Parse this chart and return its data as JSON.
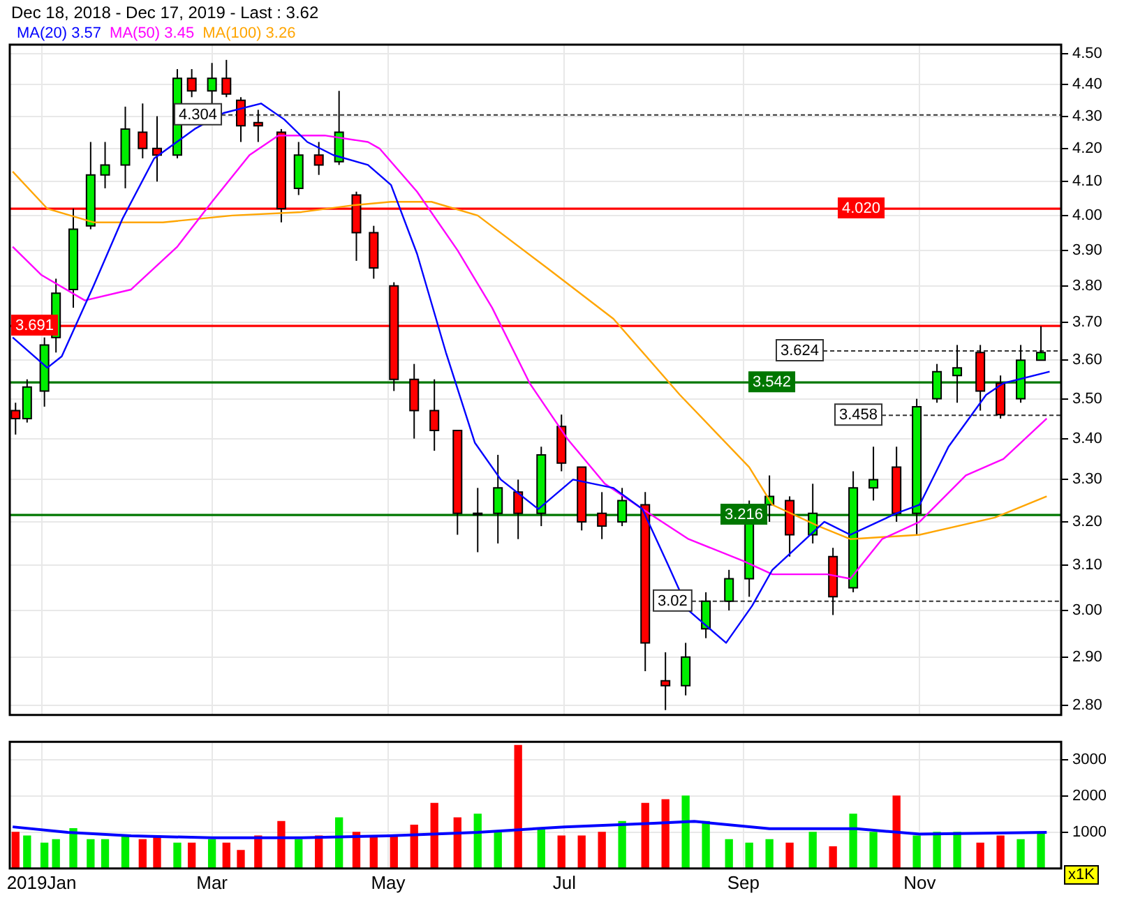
{
  "chart_data": [
    {
      "type": "candlestick",
      "title": "Dec 18, 2018 - Dec 17, 2019 - Last : 3.62",
      "log": "y",
      "grid": true,
      "legend": "top left",
      "tick_labels": "y",
      "xlim": [
        "2018-12-21",
        "2019-12-20"
      ],
      "xticks": [
        {
          "value": "2019-01-01",
          "label": null
        },
        {
          "value": "2019-03-01",
          "label": null
        },
        {
          "value": "2019-05-01",
          "label": null
        },
        {
          "value": "2019-07-01",
          "label": null
        },
        {
          "value": "2019-09-01",
          "label": null
        },
        {
          "value": "2019-11-01",
          "label": null
        }
      ],
      "ylim": [
        2.78,
        4.53
      ],
      "yticks": [
        {
          "value": 2.8,
          "label": "2.80"
        },
        {
          "value": 2.9,
          "label": "2.90"
        },
        {
          "value": 3,
          "label": "3.00"
        },
        {
          "value": 3.1,
          "label": "3.10"
        },
        {
          "value": 3.2,
          "label": "3.20"
        },
        {
          "value": 3.3,
          "label": "3.30"
        },
        {
          "value": 3.4,
          "label": "3.40"
        },
        {
          "value": 3.5,
          "label": "3.50"
        },
        {
          "value": 3.6,
          "label": "3.60"
        },
        {
          "value": 3.7,
          "label": "3.70"
        },
        {
          "value": 3.8,
          "label": "3.80"
        },
        {
          "value": 3.9,
          "label": "3.90"
        },
        {
          "value": 4,
          "label": "4.00"
        },
        {
          "value": 4.1,
          "label": "4.10"
        },
        {
          "value": 4.2,
          "label": "4.20"
        },
        {
          "value": 4.3,
          "label": "4.30"
        },
        {
          "value": 4.4,
          "label": "4.40"
        },
        {
          "value": 4.5,
          "label": "4.50"
        }
      ],
      "x": [
        "2018-12-23",
        "2018-12-27",
        "2019-01-02",
        "2019-01-06",
        "2019-01-12",
        "2019-01-18",
        "2019-01-23",
        "2019-01-30",
        "2019-02-05",
        "2019-02-10",
        "2019-02-17",
        "2019-02-22",
        "2019-03-01",
        "2019-03-06",
        "2019-03-11",
        "2019-03-17",
        "2019-03-25",
        "2019-03-31",
        "2019-04-07",
        "2019-04-14",
        "2019-04-20",
        "2019-04-26",
        "2019-05-03",
        "2019-05-10",
        "2019-05-17",
        "2019-05-25",
        "2019-06-01",
        "2019-06-08",
        "2019-06-15",
        "2019-06-23",
        "2019-06-30",
        "2019-07-07",
        "2019-07-14",
        "2019-07-21",
        "2019-07-29",
        "2019-08-05",
        "2019-08-12",
        "2019-08-19",
        "2019-08-27",
        "2019-09-03",
        "2019-09-10",
        "2019-09-17",
        "2019-09-25",
        "2019-10-02",
        "2019-10-09",
        "2019-10-16",
        "2019-10-24",
        "2019-10-31",
        "2019-11-07",
        "2019-11-14",
        "2019-11-22",
        "2019-11-29",
        "2019-12-06",
        "2019-12-13"
      ],
      "ohlc": [
        [
          3.47,
          3.49,
          3.41,
          3.45
        ],
        [
          3.45,
          3.55,
          3.44,
          3.53
        ],
        [
          3.52,
          3.66,
          3.48,
          3.64
        ],
        [
          3.66,
          3.82,
          3.62,
          3.78
        ],
        [
          3.79,
          4.02,
          3.74,
          3.96
        ],
        [
          3.97,
          4.22,
          3.96,
          4.12
        ],
        [
          4.12,
          4.22,
          4.08,
          4.15
        ],
        [
          4.15,
          4.33,
          4.08,
          4.26
        ],
        [
          4.25,
          4.34,
          4.17,
          4.2
        ],
        [
          4.2,
          4.3,
          4.1,
          4.18
        ],
        [
          4.18,
          4.45,
          4.17,
          4.42
        ],
        [
          4.42,
          4.45,
          4.36,
          4.38
        ],
        [
          4.38,
          4.47,
          4.3,
          4.42
        ],
        [
          4.42,
          4.48,
          4.36,
          4.37
        ],
        [
          4.35,
          4.36,
          4.22,
          4.27
        ],
        [
          4.28,
          4.32,
          4.22,
          4.27
        ],
        [
          4.25,
          4.26,
          3.98,
          4.02
        ],
        [
          4.08,
          4.22,
          4.06,
          4.18
        ],
        [
          4.18,
          4.22,
          4.12,
          4.15
        ],
        [
          4.16,
          4.38,
          4.15,
          4.25
        ],
        [
          4.06,
          4.07,
          3.87,
          3.95
        ],
        [
          3.95,
          3.97,
          3.82,
          3.85
        ],
        [
          3.8,
          3.81,
          3.52,
          3.55
        ],
        [
          3.55,
          3.59,
          3.4,
          3.47
        ],
        [
          3.47,
          3.55,
          3.37,
          3.42
        ],
        [
          3.42,
          3.42,
          3.17,
          3.22
        ],
        [
          3.22,
          3.28,
          3.13,
          3.22
        ],
        [
          3.22,
          3.36,
          3.15,
          3.28
        ],
        [
          3.27,
          3.3,
          3.16,
          3.22
        ],
        [
          3.22,
          3.38,
          3.19,
          3.36
        ],
        [
          3.43,
          3.46,
          3.32,
          3.34
        ],
        [
          3.33,
          3.33,
          3.18,
          3.2
        ],
        [
          3.22,
          3.27,
          3.16,
          3.19
        ],
        [
          3.2,
          3.28,
          3.19,
          3.25
        ],
        [
          3.24,
          3.27,
          2.87,
          2.93
        ],
        [
          2.85,
          2.91,
          2.79,
          2.84
        ],
        [
          2.84,
          2.93,
          2.82,
          2.9
        ],
        [
          2.96,
          3.04,
          2.94,
          3.02
        ],
        [
          3.02,
          3.09,
          3,
          3.07
        ],
        [
          3.07,
          3.25,
          3.03,
          3.22
        ],
        [
          3.24,
          3.31,
          3.2,
          3.26
        ],
        [
          3.25,
          3.26,
          3.12,
          3.17
        ],
        [
          3.17,
          3.29,
          3.15,
          3.22
        ],
        [
          3.12,
          3.14,
          2.99,
          3.03
        ],
        [
          3.05,
          3.32,
          3.04,
          3.28
        ],
        [
          3.28,
          3.38,
          3.25,
          3.3
        ],
        [
          3.33,
          3.38,
          3.2,
          3.22
        ],
        [
          3.22,
          3.5,
          3.17,
          3.48
        ],
        [
          3.5,
          3.59,
          3.49,
          3.57
        ],
        [
          3.56,
          3.64,
          3.49,
          3.58
        ],
        [
          3.62,
          3.64,
          3.47,
          3.52
        ],
        [
          3.54,
          3.56,
          3.45,
          3.46
        ],
        [
          3.5,
          3.64,
          3.49,
          3.6
        ],
        [
          3.6,
          3.69,
          3.6,
          3.62
        ]
      ],
      "series": [
        {
          "type": "line",
          "name": "MA(20) 3.57",
          "color": "#0000ff",
          "x": [
            "2018-12-22",
            "2019-01-03",
            "2019-01-08",
            "2019-01-19",
            "2019-01-29",
            "2019-02-09",
            "2019-02-23",
            "2019-03-05",
            "2019-03-18",
            "2019-03-26",
            "2019-04-03",
            "2019-04-12",
            "2019-04-24",
            "2019-05-02",
            "2019-05-11",
            "2019-05-21",
            "2019-05-31",
            "2019-06-09",
            "2019-06-22",
            "2019-07-04",
            "2019-07-18",
            "2019-07-28",
            "2019-08-06",
            "2019-08-13",
            "2019-08-26",
            "2019-09-04",
            "2019-09-11",
            "2019-09-29",
            "2019-10-08",
            "2019-10-24",
            "2019-11-01",
            "2019-11-11",
            "2019-11-24",
            "2019-11-30",
            "2019-12-16"
          ],
          "values": [
            3.66,
            3.58,
            3.61,
            3.8,
            3.99,
            4.17,
            4.26,
            4.31,
            4.34,
            4.29,
            4.22,
            4.18,
            4.15,
            4.09,
            3.89,
            3.62,
            3.39,
            3.3,
            3.23,
            3.3,
            3.28,
            3.23,
            3.1,
            3,
            2.93,
            3.01,
            3.09,
            3.2,
            3.17,
            3.22,
            3.24,
            3.38,
            3.51,
            3.54,
            3.57
          ]
        },
        {
          "type": "line",
          "name": "MA(50) 3.45",
          "color": "#ff00ff",
          "x": [
            "2018-12-22",
            "2019-01-01",
            "2019-01-16",
            "2019-02-01",
            "2019-02-17",
            "2019-03-01",
            "2019-03-14",
            "2019-03-24",
            "2019-04-09",
            "2019-04-24",
            "2019-04-28",
            "2019-05-11",
            "2019-05-25",
            "2019-06-06",
            "2019-06-19",
            "2019-07-02",
            "2019-07-15",
            "2019-07-28",
            "2019-08-13",
            "2019-09-01",
            "2019-09-11",
            "2019-09-30",
            "2019-10-08",
            "2019-10-19",
            "2019-11-01",
            "2019-11-17",
            "2019-11-30",
            "2019-12-15"
          ],
          "values": [
            3.91,
            3.83,
            3.76,
            3.79,
            3.91,
            4.04,
            4.18,
            4.24,
            4.24,
            4.22,
            4.2,
            4.07,
            3.9,
            3.74,
            3.54,
            3.4,
            3.29,
            3.23,
            3.16,
            3.11,
            3.08,
            3.08,
            3.07,
            3.16,
            3.2,
            3.31,
            3.35,
            3.45
          ]
        },
        {
          "type": "line",
          "name": "MA(100) 3.26",
          "color": "#ffa500",
          "x": [
            "2018-12-22",
            "2019-01-03",
            "2019-01-19",
            "2019-02-12",
            "2019-03-08",
            "2019-04-01",
            "2019-04-19",
            "2019-05-02",
            "2019-05-16",
            "2019-06-01",
            "2019-06-25",
            "2019-07-18",
            "2019-08-10",
            "2019-09-03",
            "2019-09-11",
            "2019-09-27",
            "2019-10-08",
            "2019-11-01",
            "2019-11-27",
            "2019-12-15"
          ],
          "values": [
            4.13,
            4.02,
            3.98,
            3.98,
            4,
            4.01,
            4.03,
            4.04,
            4.04,
            4,
            3.85,
            3.71,
            3.51,
            3.33,
            3.24,
            3.19,
            3.16,
            3.17,
            3.21,
            3.26
          ]
        }
      ],
      "ref_lines": [
        {
          "axis": "y",
          "value": 4.02,
          "label": "4.020",
          "color": "#ff0000",
          "line_style": "solid"
        },
        {
          "axis": "y",
          "value": 3.691,
          "label": "3.691",
          "color": "#ff0000",
          "line_style": "solid"
        },
        {
          "axis": "y",
          "value": 3.542,
          "label": "3.542",
          "color": "#007700",
          "line_style": "solid"
        },
        {
          "axis": "y",
          "value": 3.216,
          "label": "3.216",
          "color": "#007700",
          "line_style": "solid"
        },
        {
          "axis": "y",
          "value": 4.304,
          "label": "4.304",
          "color": "#333333",
          "line_style": "dashed"
        },
        {
          "axis": "y",
          "value": 3.624,
          "label": "3.624",
          "color": "#333333",
          "line_style": "dashed"
        },
        {
          "axis": "y",
          "value": 3.458,
          "label": "3.458",
          "color": "#333333",
          "line_style": "dashed"
        },
        {
          "axis": "y",
          "value": 3.02,
          "label": "3.02",
          "color": "#333333",
          "line_style": "dashed"
        }
      ]
    },
    {
      "type": "bar",
      "grid": true,
      "annotations": [
        "x1K"
      ],
      "xlim": [
        "2018-12-21",
        "2019-12-20"
      ],
      "xticks": [
        {
          "value": "2019-01-01",
          "label": "2019Jan"
        },
        {
          "value": "2019-03-01",
          "label": "Mar"
        },
        {
          "value": "2019-05-01",
          "label": "May"
        },
        {
          "value": "2019-07-01",
          "label": "Jul"
        },
        {
          "value": "2019-09-01",
          "label": "Sep"
        },
        {
          "value": "2019-11-01",
          "label": "Nov"
        }
      ],
      "ylim": [
        0,
        3500
      ],
      "yticks": [
        1000,
        2000,
        3000
      ],
      "x": [
        "2018-12-23",
        "2018-12-27",
        "2019-01-02",
        "2019-01-06",
        "2019-01-12",
        "2019-01-18",
        "2019-01-23",
        "2019-01-30",
        "2019-02-05",
        "2019-02-10",
        "2019-02-17",
        "2019-02-22",
        "2019-03-01",
        "2019-03-06",
        "2019-03-11",
        "2019-03-17",
        "2019-03-25",
        "2019-03-31",
        "2019-04-07",
        "2019-04-14",
        "2019-04-20",
        "2019-04-26",
        "2019-05-03",
        "2019-05-10",
        "2019-05-17",
        "2019-05-25",
        "2019-06-01",
        "2019-06-08",
        "2019-06-15",
        "2019-06-23",
        "2019-06-30",
        "2019-07-07",
        "2019-07-14",
        "2019-07-21",
        "2019-07-29",
        "2019-08-05",
        "2019-08-12",
        "2019-08-19",
        "2019-08-27",
        "2019-09-03",
        "2019-09-10",
        "2019-09-17",
        "2019-09-25",
        "2019-10-02",
        "2019-10-09",
        "2019-10-16",
        "2019-10-24",
        "2019-10-31",
        "2019-11-07",
        "2019-11-14",
        "2019-11-22",
        "2019-11-29",
        "2019-12-06",
        "2019-12-13"
      ],
      "values": [
        1000,
        900,
        700,
        800,
        1100,
        800,
        800,
        900,
        800,
        900,
        700,
        700,
        800,
        700,
        500,
        900,
        1300,
        800,
        900,
        1400,
        1000,
        900,
        900,
        1200,
        1800,
        1400,
        1500,
        1000,
        3400,
        1100,
        900,
        900,
        1000,
        1300,
        1800,
        1900,
        2000,
        1300,
        800,
        700,
        800,
        700,
        1000,
        600,
        1500,
        1000,
        2000,
        900,
        1000,
        1000,
        700,
        900,
        800,
        1000
      ],
      "colors": [
        "#ff0000",
        "#00ee00",
        "#00ee00",
        "#00ee00",
        "#00ee00",
        "#00ee00",
        "#00ee00",
        "#00ee00",
        "#ff0000",
        "#ff0000",
        "#00ee00",
        "#ff0000",
        "#00ee00",
        "#ff0000",
        "#ff0000",
        "#ff0000",
        "#ff0000",
        "#00ee00",
        "#ff0000",
        "#00ee00",
        "#ff0000",
        "#ff0000",
        "#ff0000",
        "#ff0000",
        "#ff0000",
        "#ff0000",
        "#00ee00",
        "#00ee00",
        "#ff0000",
        "#00ee00",
        "#ff0000",
        "#ff0000",
        "#ff0000",
        "#00ee00",
        "#ff0000",
        "#ff0000",
        "#00ee00",
        "#00ee00",
        "#00ee00",
        "#00ee00",
        "#00ee00",
        "#ff0000",
        "#00ee00",
        "#ff0000",
        "#00ee00",
        "#00ee00",
        "#ff0000",
        "#00ee00",
        "#00ee00",
        "#00ee00",
        "#ff0000",
        "#ff0000",
        "#00ee00",
        "#00ee00"
      ],
      "series": [
        {
          "type": "line",
          "color": "#0000ff",
          "x": [
            "2018-12-22",
            "2019-01-10",
            "2019-02-01",
            "2019-03-01",
            "2019-04-01",
            "2019-05-01",
            "2019-06-01",
            "2019-07-01",
            "2019-08-01",
            "2019-08-15",
            "2019-09-10",
            "2019-10-10",
            "2019-11-01",
            "2019-12-15"
          ],
          "values": [
            1150,
            1000,
            900,
            850,
            850,
            900,
            1000,
            1150,
            1250,
            1300,
            1100,
            1100,
            950,
            1000
          ]
        }
      ]
    }
  ]
}
